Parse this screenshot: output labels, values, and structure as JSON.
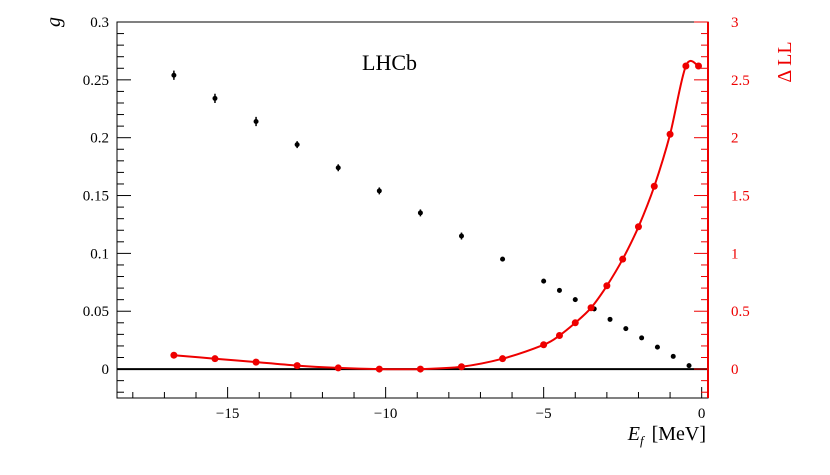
{
  "chart_data": {
    "type": "scatter",
    "title": "LHCb",
    "xlabel": "E_f  [MeV]",
    "xlabel_main": "E",
    "xlabel_sub": "f",
    "xlabel_unit": "[MeV]",
    "ylabel": "g",
    "y2label": "Δ LL",
    "xlim": [
      -18.5,
      0.2
    ],
    "ylim": [
      -0.025,
      0.3
    ],
    "y2lim": [
      -0.25,
      3.0
    ],
    "x_ticks": [
      -15,
      -10,
      -5,
      0
    ],
    "x_tick_labels": [
      "−15",
      "−10",
      "−5",
      "0"
    ],
    "y_ticks": [
      0,
      0.05,
      0.1,
      0.15,
      0.2,
      0.25,
      0.3
    ],
    "y_tick_labels": [
      "0",
      "0.05",
      "0.1",
      "0.15",
      "0.2",
      "0.25",
      "0.3"
    ],
    "y2_ticks": [
      0,
      0.5,
      1,
      1.5,
      2,
      2.5,
      3
    ],
    "y2_tick_labels": [
      "0",
      "0.5",
      "1",
      "1.5",
      "2",
      "2.5",
      "3"
    ],
    "grid": false,
    "zero_line": true,
    "series": [
      {
        "name": "g",
        "axis": "left",
        "color": "#000000",
        "style": "points-with-errors",
        "x": [
          -16.7,
          -15.4,
          -14.1,
          -12.8,
          -11.5,
          -10.2,
          -8.9,
          -7.6,
          -6.3,
          -5.0,
          -4.5,
          -4.0,
          -3.4,
          -2.9,
          -2.4,
          -1.9,
          -1.4,
          -0.9,
          -0.4
        ],
        "y": [
          0.254,
          0.234,
          0.214,
          0.194,
          0.174,
          0.154,
          0.135,
          0.115,
          0.095,
          0.076,
          0.068,
          0.06,
          0.052,
          0.043,
          0.035,
          0.027,
          0.019,
          0.011,
          0.003
        ],
        "yerr": [
          0.004,
          0.004,
          0.004,
          0.003,
          0.003,
          0.003,
          0.003,
          0.003,
          0.002,
          0.002,
          0.002,
          0.002,
          0.002,
          0.002,
          0.001,
          0.001,
          0.001,
          0.001,
          0.001
        ]
      },
      {
        "name": "Δ LL",
        "axis": "right",
        "color": "#ee0000",
        "style": "line-with-markers",
        "x": [
          -16.7,
          -15.4,
          -14.1,
          -12.8,
          -11.5,
          -10.2,
          -8.9,
          -7.6,
          -6.3,
          -5.0,
          -4.5,
          -4.0,
          -3.5,
          -3.0,
          -2.5,
          -2.0,
          -1.5,
          -1.0,
          -0.5,
          -0.1
        ],
        "y": [
          0.12,
          0.09,
          0.06,
          0.03,
          0.01,
          0.0,
          0.0,
          0.02,
          0.09,
          0.21,
          0.29,
          0.4,
          0.53,
          0.72,
          0.95,
          1.23,
          1.58,
          2.03,
          2.62,
          2.62
        ]
      }
    ]
  }
}
